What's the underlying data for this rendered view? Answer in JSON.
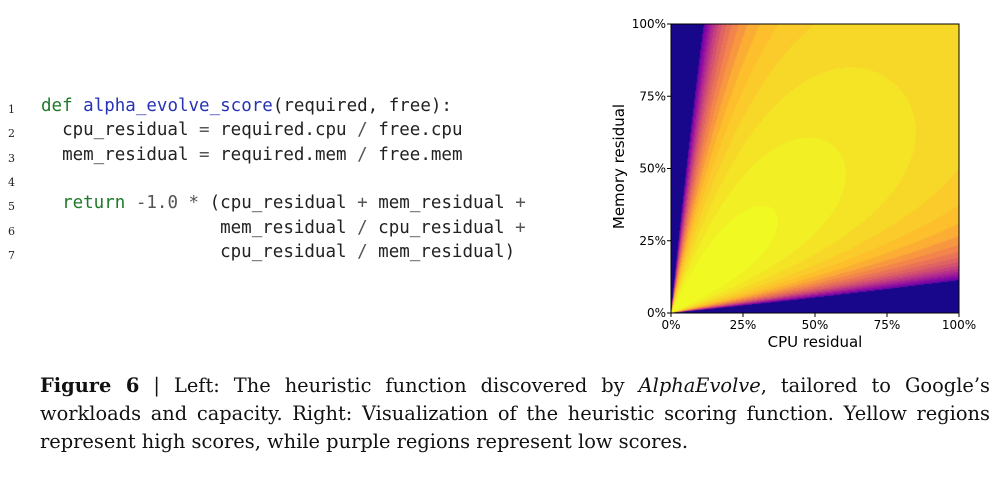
{
  "code": {
    "lines": [
      {
        "num": "1",
        "tokens": [
          {
            "t": "def",
            "c": "kw"
          },
          {
            "t": " "
          },
          {
            "t": "alpha_evolve_score",
            "c": "fn"
          },
          {
            "t": "(required, free):"
          }
        ]
      },
      {
        "num": "2",
        "tokens": [
          {
            "t": "  cpu_residual "
          },
          {
            "t": "=",
            "c": "op"
          },
          {
            "t": " required.cpu "
          },
          {
            "t": "/",
            "c": "op"
          },
          {
            "t": " free.cpu"
          }
        ]
      },
      {
        "num": "3",
        "tokens": [
          {
            "t": "  mem_residual "
          },
          {
            "t": "=",
            "c": "op"
          },
          {
            "t": " required.mem "
          },
          {
            "t": "/",
            "c": "op"
          },
          {
            "t": " free.mem"
          }
        ]
      },
      {
        "num": "4",
        "tokens": []
      },
      {
        "num": "5",
        "tokens": [
          {
            "t": "  "
          },
          {
            "t": "return",
            "c": "kw"
          },
          {
            "t": " "
          },
          {
            "t": "-1.0",
            "c": "num"
          },
          {
            "t": " "
          },
          {
            "t": "*",
            "c": "op"
          },
          {
            "t": " (cpu_residual "
          },
          {
            "t": "+",
            "c": "op"
          },
          {
            "t": " mem_residual "
          },
          {
            "t": "+",
            "c": "op"
          }
        ]
      },
      {
        "num": "6",
        "tokens": [
          {
            "t": "                 mem_residual "
          },
          {
            "t": "/",
            "c": "op"
          },
          {
            "t": " cpu_residual "
          },
          {
            "t": "+",
            "c": "op"
          }
        ]
      },
      {
        "num": "7",
        "tokens": [
          {
            "t": "                 cpu_residual "
          },
          {
            "t": "/",
            "c": "op"
          },
          {
            "t": " mem_residual)"
          }
        ]
      }
    ]
  },
  "chart_data": {
    "type": "heatmap",
    "title": "",
    "xlabel": "CPU residual",
    "ylabel": "Memory residual",
    "xlim": [
      0,
      1
    ],
    "ylim": [
      0,
      1
    ],
    "x_ticks": [
      "0%",
      "25%",
      "50%",
      "75%",
      "100%"
    ],
    "y_ticks": [
      "0%",
      "25%",
      "50%",
      "75%",
      "100%"
    ],
    "function": "-1.0 * (x + y + y/x + x/y)",
    "colormap": "plasma",
    "colors": {
      "high": "#fbc52a",
      "low": "#5b52a8"
    },
    "grid": false,
    "legend": "none"
  },
  "caption": {
    "label": "Figure 6",
    "sep": " | ",
    "part1": "Left: The heuristic function discovered by ",
    "emph": "AlphaEvolve",
    "part2": ", tailored to Google’s workloads and capacity. Right: Visualization of the heuristic scoring function. Yellow regions represent high scores, while purple regions represent low scores."
  }
}
